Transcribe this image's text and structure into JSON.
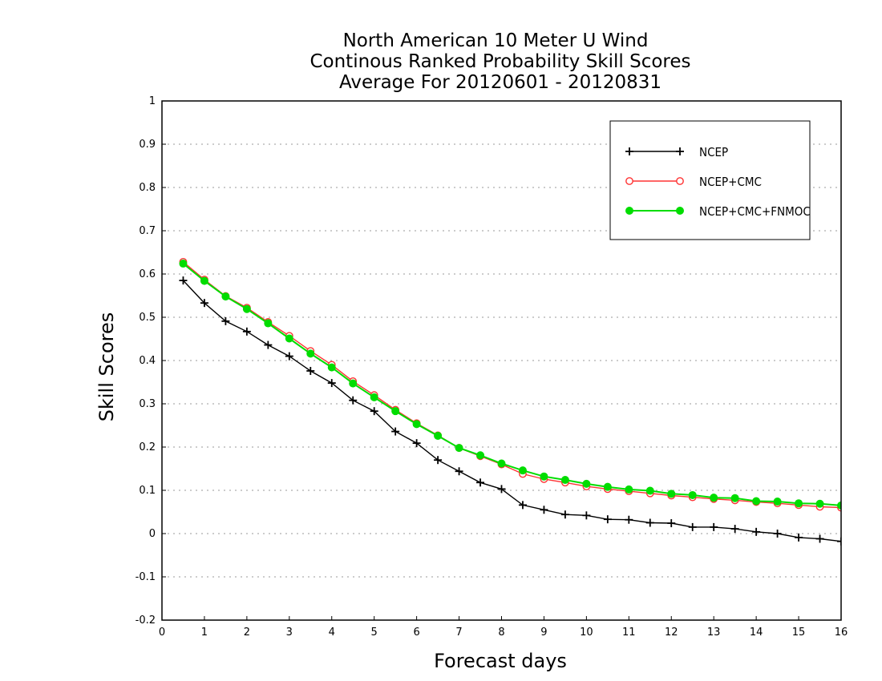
{
  "chart_data": {
    "type": "line",
    "title_lines": [
      "North American 10 Meter U Wind",
      "Continous Ranked Probability Skill Scores",
      "Average For 20120601 - 20120831"
    ],
    "xlabel": "Forecast days",
    "ylabel": "Skill Scores",
    "xlim": [
      0,
      16
    ],
    "ylim": [
      -0.2,
      1
    ],
    "xticks": [
      0,
      1,
      2,
      3,
      4,
      5,
      6,
      7,
      8,
      9,
      10,
      11,
      12,
      13,
      14,
      15,
      16
    ],
    "xtick_labels": [
      "0",
      "1",
      "2",
      "3",
      "4",
      "5",
      "6",
      "7",
      "8",
      "9",
      "10",
      "11",
      "12",
      "13",
      "14",
      "15",
      "16"
    ],
    "yticks": [
      -0.2,
      -0.1,
      0,
      0.1,
      0.2,
      0.3,
      0.4,
      0.5,
      0.6,
      0.7,
      0.8,
      0.9,
      1
    ],
    "ytick_labels": [
      "-0.2",
      "-0.1",
      "0",
      "0.1",
      "0.2",
      "0.3",
      "0.4",
      "0.5",
      "0.6",
      "0.7",
      "0.8",
      "0.9",
      "1"
    ],
    "grid": "horizontal dotted",
    "legend_position": "top-right",
    "x": [
      0.5,
      1,
      1.5,
      2,
      2.5,
      3,
      3.5,
      4,
      4.5,
      5,
      5.5,
      6,
      6.5,
      7,
      7.5,
      8,
      8.5,
      9,
      9.5,
      10,
      10.5,
      11,
      11.5,
      12,
      12.5,
      13,
      13.5,
      14,
      14.5,
      15,
      15.5,
      16
    ],
    "series": [
      {
        "name": "NCEP",
        "color": "#000000",
        "marker": "plus",
        "values": [
          0.585,
          0.533,
          0.491,
          0.467,
          0.436,
          0.41,
          0.376,
          0.348,
          0.308,
          0.283,
          0.236,
          0.209,
          0.17,
          0.144,
          0.118,
          0.103,
          0.066,
          0.055,
          0.044,
          0.042,
          0.033,
          0.032,
          0.025,
          0.024,
          0.015,
          0.015,
          0.011,
          0.004,
          0.0,
          -0.009,
          -0.012,
          -0.018
        ]
      },
      {
        "name": "NCEP+CMC",
        "color": "#ff3333",
        "marker": "open-circle",
        "values": [
          0.628,
          0.587,
          0.549,
          0.522,
          0.489,
          0.457,
          0.422,
          0.39,
          0.352,
          0.32,
          0.286,
          0.255,
          0.227,
          0.198,
          0.179,
          0.16,
          0.138,
          0.126,
          0.118,
          0.109,
          0.103,
          0.098,
          0.093,
          0.088,
          0.084,
          0.08,
          0.077,
          0.073,
          0.07,
          0.066,
          0.062,
          0.06
        ]
      },
      {
        "name": "NCEP+CMC+FNMOC",
        "color": "#00dd00",
        "marker": "filled-circle",
        "values": [
          0.624,
          0.584,
          0.548,
          0.519,
          0.486,
          0.451,
          0.416,
          0.384,
          0.347,
          0.315,
          0.283,
          0.253,
          0.226,
          0.198,
          0.181,
          0.162,
          0.146,
          0.132,
          0.124,
          0.115,
          0.108,
          0.102,
          0.099,
          0.092,
          0.089,
          0.083,
          0.082,
          0.075,
          0.074,
          0.07,
          0.069,
          0.065
        ]
      }
    ]
  }
}
